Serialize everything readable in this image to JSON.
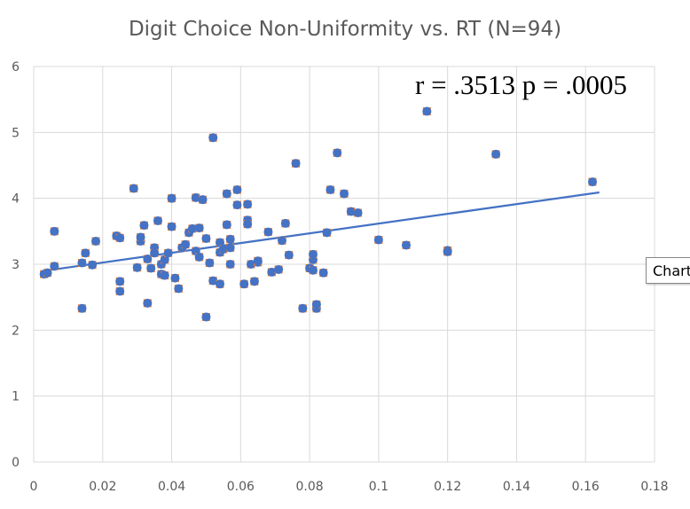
{
  "chart_data": {
    "type": "scatter",
    "title": "Digit Choice Non-Uniformity vs. RT (N=94)",
    "annotation": "r = .3513 p = .0005",
    "xlim": [
      0,
      0.18
    ],
    "ylim": [
      0,
      6
    ],
    "x_ticks": [
      0,
      0.02,
      0.04,
      0.06,
      0.08,
      0.1,
      0.12,
      0.14,
      0.16,
      0.18
    ],
    "x_tick_labels": [
      "0",
      "0.02",
      "0.04",
      "0.06",
      "0.08",
      "0.1",
      "0.12",
      "0.14",
      "0.16",
      "0.18"
    ],
    "y_ticks": [
      0,
      1,
      2,
      3,
      4,
      5,
      6
    ],
    "y_tick_labels": [
      "0",
      "1",
      "2",
      "3",
      "4",
      "5",
      "6"
    ],
    "grid": true,
    "point_color": "#4472C4",
    "trendline": {
      "color": "#4472C4",
      "x": [
        0.003,
        0.164
      ],
      "y": [
        2.9,
        4.09
      ]
    },
    "series": [
      {
        "points": [
          [
            0.003,
            2.85
          ],
          [
            0.004,
            2.87
          ],
          [
            0.006,
            3.5
          ],
          [
            0.006,
            2.97
          ],
          [
            0.014,
            2.33
          ],
          [
            0.014,
            3.02
          ],
          [
            0.015,
            3.17
          ],
          [
            0.017,
            2.99
          ],
          [
            0.018,
            3.35
          ],
          [
            0.024,
            3.43
          ],
          [
            0.025,
            2.74
          ],
          [
            0.025,
            2.59
          ],
          [
            0.025,
            3.4
          ],
          [
            0.029,
            4.15
          ],
          [
            0.03,
            2.95
          ],
          [
            0.031,
            3.35
          ],
          [
            0.031,
            3.41
          ],
          [
            0.032,
            3.59
          ],
          [
            0.033,
            3.08
          ],
          [
            0.033,
            2.41
          ],
          [
            0.034,
            2.94
          ],
          [
            0.035,
            3.25
          ],
          [
            0.035,
            3.17
          ],
          [
            0.036,
            3.66
          ],
          [
            0.037,
            2.85
          ],
          [
            0.037,
            3.0
          ],
          [
            0.038,
            2.83
          ],
          [
            0.038,
            3.07
          ],
          [
            0.039,
            3.17
          ],
          [
            0.04,
            3.57
          ],
          [
            0.04,
            4.0
          ],
          [
            0.041,
            2.79
          ],
          [
            0.042,
            2.63
          ],
          [
            0.043,
            3.25
          ],
          [
            0.044,
            3.3
          ],
          [
            0.045,
            3.48
          ],
          [
            0.046,
            3.54
          ],
          [
            0.047,
            3.2
          ],
          [
            0.047,
            4.01
          ],
          [
            0.048,
            3.55
          ],
          [
            0.048,
            3.11
          ],
          [
            0.049,
            3.98
          ],
          [
            0.05,
            3.39
          ],
          [
            0.05,
            2.2
          ],
          [
            0.051,
            3.02
          ],
          [
            0.052,
            2.75
          ],
          [
            0.052,
            4.92
          ],
          [
            0.054,
            3.18
          ],
          [
            0.054,
            3.33
          ],
          [
            0.054,
            2.7
          ],
          [
            0.055,
            3.23
          ],
          [
            0.056,
            3.6
          ],
          [
            0.056,
            4.07
          ],
          [
            0.057,
            3.38
          ],
          [
            0.057,
            3.0
          ],
          [
            0.057,
            3.25
          ],
          [
            0.059,
            3.9
          ],
          [
            0.059,
            4.13
          ],
          [
            0.061,
            2.7
          ],
          [
            0.062,
            3.67
          ],
          [
            0.062,
            3.61
          ],
          [
            0.062,
            3.91
          ],
          [
            0.063,
            3.0
          ],
          [
            0.064,
            2.74
          ],
          [
            0.065,
            3.03
          ],
          [
            0.065,
            3.05
          ],
          [
            0.068,
            3.49
          ],
          [
            0.069,
            2.88
          ],
          [
            0.071,
            2.92
          ],
          [
            0.072,
            3.36
          ],
          [
            0.073,
            3.62
          ],
          [
            0.074,
            3.14
          ],
          [
            0.076,
            4.53
          ],
          [
            0.078,
            2.33
          ],
          [
            0.08,
            2.94
          ],
          [
            0.081,
            3.07
          ],
          [
            0.081,
            2.91
          ],
          [
            0.081,
            3.15
          ],
          [
            0.082,
            2.33
          ],
          [
            0.082,
            2.39
          ],
          [
            0.084,
            2.87
          ],
          [
            0.085,
            3.48
          ],
          [
            0.086,
            4.13
          ],
          [
            0.088,
            4.69
          ],
          [
            0.09,
            4.07
          ],
          [
            0.092,
            3.8
          ],
          [
            0.094,
            3.78
          ],
          [
            0.1,
            3.37
          ],
          [
            0.108,
            3.29
          ],
          [
            0.114,
            5.32
          ],
          [
            0.12,
            3.21
          ],
          [
            0.12,
            3.19
          ],
          [
            0.134,
            4.67
          ],
          [
            0.162,
            4.25
          ]
        ]
      }
    ]
  },
  "tooltip": {
    "label": "Chart"
  }
}
